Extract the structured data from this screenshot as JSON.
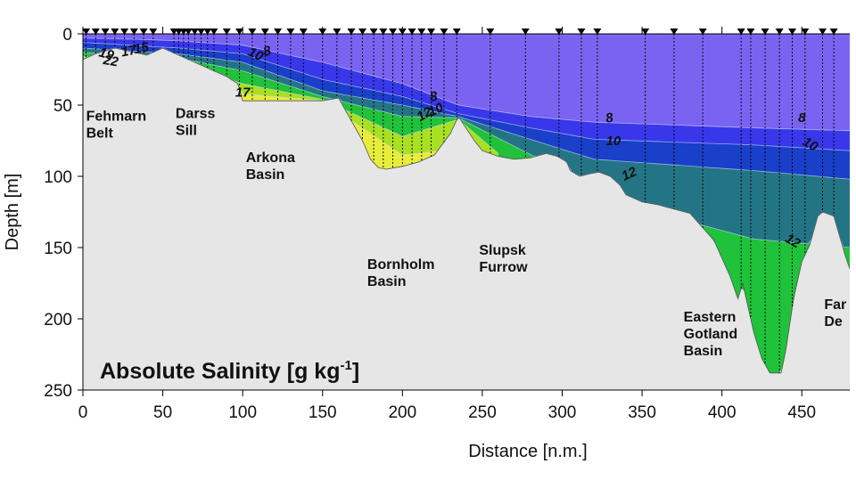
{
  "chart_data": {
    "type": "section",
    "title": "Absolute Salinity [g kg",
    "title_superscript": "-1",
    "title_suffix": "]",
    "xlabel": "Distance [n.m.]",
    "ylabel": "Depth [m]",
    "xlim": [
      0,
      480
    ],
    "ylim": [
      0,
      250
    ],
    "x_ticks": [
      0,
      50,
      100,
      150,
      200,
      250,
      300,
      350,
      400,
      450
    ],
    "y_ticks": [
      0,
      50,
      100,
      150,
      200,
      250
    ],
    "colors": {
      "background": "#e6e6e6",
      "surface": "#7b63f2",
      "s8": "#3838ea",
      "s10": "#1a3fc8",
      "s12": "#237585",
      "s13": "#1fc23a",
      "s15": "#a8e022",
      "s17": "#e8ec3a",
      "s19": "#f2a520",
      "s22": "#e81c1c",
      "contour": "#cfd6ff",
      "station": "#000000"
    },
    "stations": [
      2,
      8,
      14,
      20,
      26,
      32,
      38,
      44,
      57,
      60,
      63,
      66,
      70,
      74,
      78,
      82,
      90,
      98,
      106,
      114,
      122,
      130,
      138,
      150,
      159,
      168,
      175,
      182,
      188,
      194,
      200,
      206,
      212,
      218,
      226,
      234,
      255,
      277,
      298,
      312,
      322,
      352,
      370,
      388,
      412,
      418,
      427,
      436,
      444,
      452,
      463,
      470
    ],
    "bathymetry": [
      [
        0,
        18
      ],
      [
        8,
        14
      ],
      [
        20,
        10
      ],
      [
        40,
        15
      ],
      [
        50,
        10
      ],
      [
        60,
        15
      ],
      [
        70,
        20
      ],
      [
        80,
        25
      ],
      [
        90,
        30
      ],
      [
        97,
        35
      ],
      [
        100,
        47
      ],
      [
        103,
        47
      ],
      [
        150,
        47
      ],
      [
        160,
        45
      ],
      [
        165,
        55
      ],
      [
        170,
        65
      ],
      [
        175,
        75
      ],
      [
        180,
        88
      ],
      [
        185,
        94
      ],
      [
        190,
        95
      ],
      [
        200,
        93
      ],
      [
        210,
        90
      ],
      [
        220,
        85
      ],
      [
        230,
        70
      ],
      [
        235,
        58
      ],
      [
        245,
        75
      ],
      [
        250,
        82
      ],
      [
        260,
        86
      ],
      [
        270,
        88
      ],
      [
        280,
        87
      ],
      [
        290,
        84
      ],
      [
        297,
        86
      ],
      [
        303,
        90
      ],
      [
        305,
        96
      ],
      [
        311,
        100
      ],
      [
        318,
        98
      ],
      [
        323,
        97
      ],
      [
        330,
        100
      ],
      [
        336,
        106
      ],
      [
        340,
        113
      ],
      [
        350,
        118
      ],
      [
        360,
        120
      ],
      [
        380,
        126
      ],
      [
        395,
        145
      ],
      [
        405,
        170
      ],
      [
        410,
        186
      ],
      [
        413,
        175
      ],
      [
        420,
        210
      ],
      [
        425,
        228
      ],
      [
        430,
        238
      ],
      [
        437,
        238
      ],
      [
        440,
        222
      ],
      [
        445,
        185
      ],
      [
        450,
        160
      ],
      [
        455,
        148
      ],
      [
        460,
        128
      ],
      [
        463,
        125
      ],
      [
        470,
        128
      ],
      [
        477,
        155
      ],
      [
        480,
        165
      ]
    ],
    "isohalines": [
      {
        "value": 8,
        "depths": [
          [
            0,
            3
          ],
          [
            40,
            4
          ],
          [
            60,
            5
          ],
          [
            100,
            8
          ],
          [
            150,
            20
          ],
          [
            200,
            35
          ],
          [
            235,
            50
          ],
          [
            280,
            58
          ],
          [
            320,
            62
          ],
          [
            370,
            64
          ],
          [
            420,
            66
          ],
          [
            480,
            68
          ]
        ]
      },
      {
        "value": 10,
        "depths": [
          [
            0,
            6
          ],
          [
            60,
            10
          ],
          [
            100,
            14
          ],
          [
            150,
            32
          ],
          [
            200,
            44
          ],
          [
            235,
            56
          ],
          [
            280,
            66
          ],
          [
            320,
            74
          ],
          [
            370,
            76
          ],
          [
            420,
            78
          ],
          [
            480,
            82
          ]
        ]
      },
      {
        "value": 12,
        "depths": [
          [
            0,
            10
          ],
          [
            60,
            14
          ],
          [
            100,
            20
          ],
          [
            150,
            40
          ],
          [
            200,
            50
          ],
          [
            235,
            58
          ],
          [
            280,
            74
          ],
          [
            320,
            88
          ],
          [
            370,
            92
          ],
          [
            420,
            96
          ],
          [
            480,
            102
          ]
        ]
      },
      {
        "value": 13,
        "depths": [
          [
            0,
            13
          ],
          [
            60,
            17
          ],
          [
            100,
            26
          ],
          [
            150,
            44
          ],
          [
            200,
            58
          ],
          [
            235,
            59
          ],
          [
            300,
            96
          ],
          [
            340,
            120
          ],
          [
            380,
            132
          ],
          [
            420,
            144
          ],
          [
            480,
            150
          ]
        ]
      },
      {
        "value": 15,
        "depths": [
          [
            0,
            16
          ],
          [
            60,
            20
          ],
          [
            100,
            35
          ],
          [
            150,
            46
          ],
          [
            200,
            72
          ],
          [
            235,
            60
          ],
          [
            260,
            84
          ]
        ]
      },
      {
        "value": 17,
        "depths": [
          [
            0,
            19
          ],
          [
            40,
            22
          ],
          [
            100,
            42
          ],
          [
            150,
            47
          ],
          [
            200,
            85
          ],
          [
            225,
            82
          ]
        ]
      },
      {
        "value": 19,
        "depths": [
          [
            0,
            21
          ],
          [
            40,
            24
          ],
          [
            50,
            14
          ]
        ]
      },
      {
        "value": 22,
        "depths": [
          [
            0,
            24
          ],
          [
            30,
            26
          ],
          [
            40,
            20
          ]
        ]
      }
    ],
    "basins": [
      {
        "name": "Fehmarn",
        "name2": "Belt",
        "x": 2,
        "y": 61
      },
      {
        "name": "Darss",
        "name2": "Sill",
        "x": 58,
        "y": 59
      },
      {
        "name": "Arkona",
        "name2": "Basin",
        "x": 102,
        "y": 90
      },
      {
        "name": "Bornholm",
        "name2": "Basin",
        "x": 178,
        "y": 165
      },
      {
        "name": "Slupsk",
        "name2": "Furrow",
        "x": 248,
        "y": 155
      },
      {
        "name": "Eastern",
        "name2": "Gotland",
        "name3": "Basin",
        "x": 376,
        "y": 202
      },
      {
        "name": "Far",
        "name2": "De",
        "x": 464,
        "y": 193
      }
    ],
    "contour_labels": [
      {
        "text": "19",
        "x": 14,
        "y": 17,
        "rotate": 15
      },
      {
        "text": "22",
        "x": 17,
        "y": 22,
        "rotate": 10
      },
      {
        "text": "17",
        "x": 29,
        "y": 15,
        "rotate": -10
      },
      {
        "text": "15",
        "x": 37,
        "y": 13,
        "rotate": -10
      },
      {
        "text": "10",
        "x": 107,
        "y": 17,
        "rotate": 25
      },
      {
        "text": "8",
        "x": 116,
        "y": 15,
        "rotate": -15
      },
      {
        "text": "17",
        "x": 100,
        "y": 44,
        "rotate": 0
      },
      {
        "text": "8",
        "x": 220,
        "y": 47,
        "rotate": -10
      },
      {
        "text": "12",
        "x": 215,
        "y": 59,
        "rotate": -30
      },
      {
        "text": "10",
        "x": 222,
        "y": 56,
        "rotate": -25
      },
      {
        "text": "8",
        "x": 330,
        "y": 62,
        "rotate": -10
      },
      {
        "text": "10",
        "x": 332,
        "y": 78,
        "rotate": 0
      },
      {
        "text": "12",
        "x": 343,
        "y": 101,
        "rotate": -25
      },
      {
        "text": "8",
        "x": 450,
        "y": 62,
        "rotate": 0
      },
      {
        "text": "10",
        "x": 454,
        "y": 80,
        "rotate": 30
      },
      {
        "text": "12",
        "x": 443,
        "y": 148,
        "rotate": 30
      }
    ]
  }
}
